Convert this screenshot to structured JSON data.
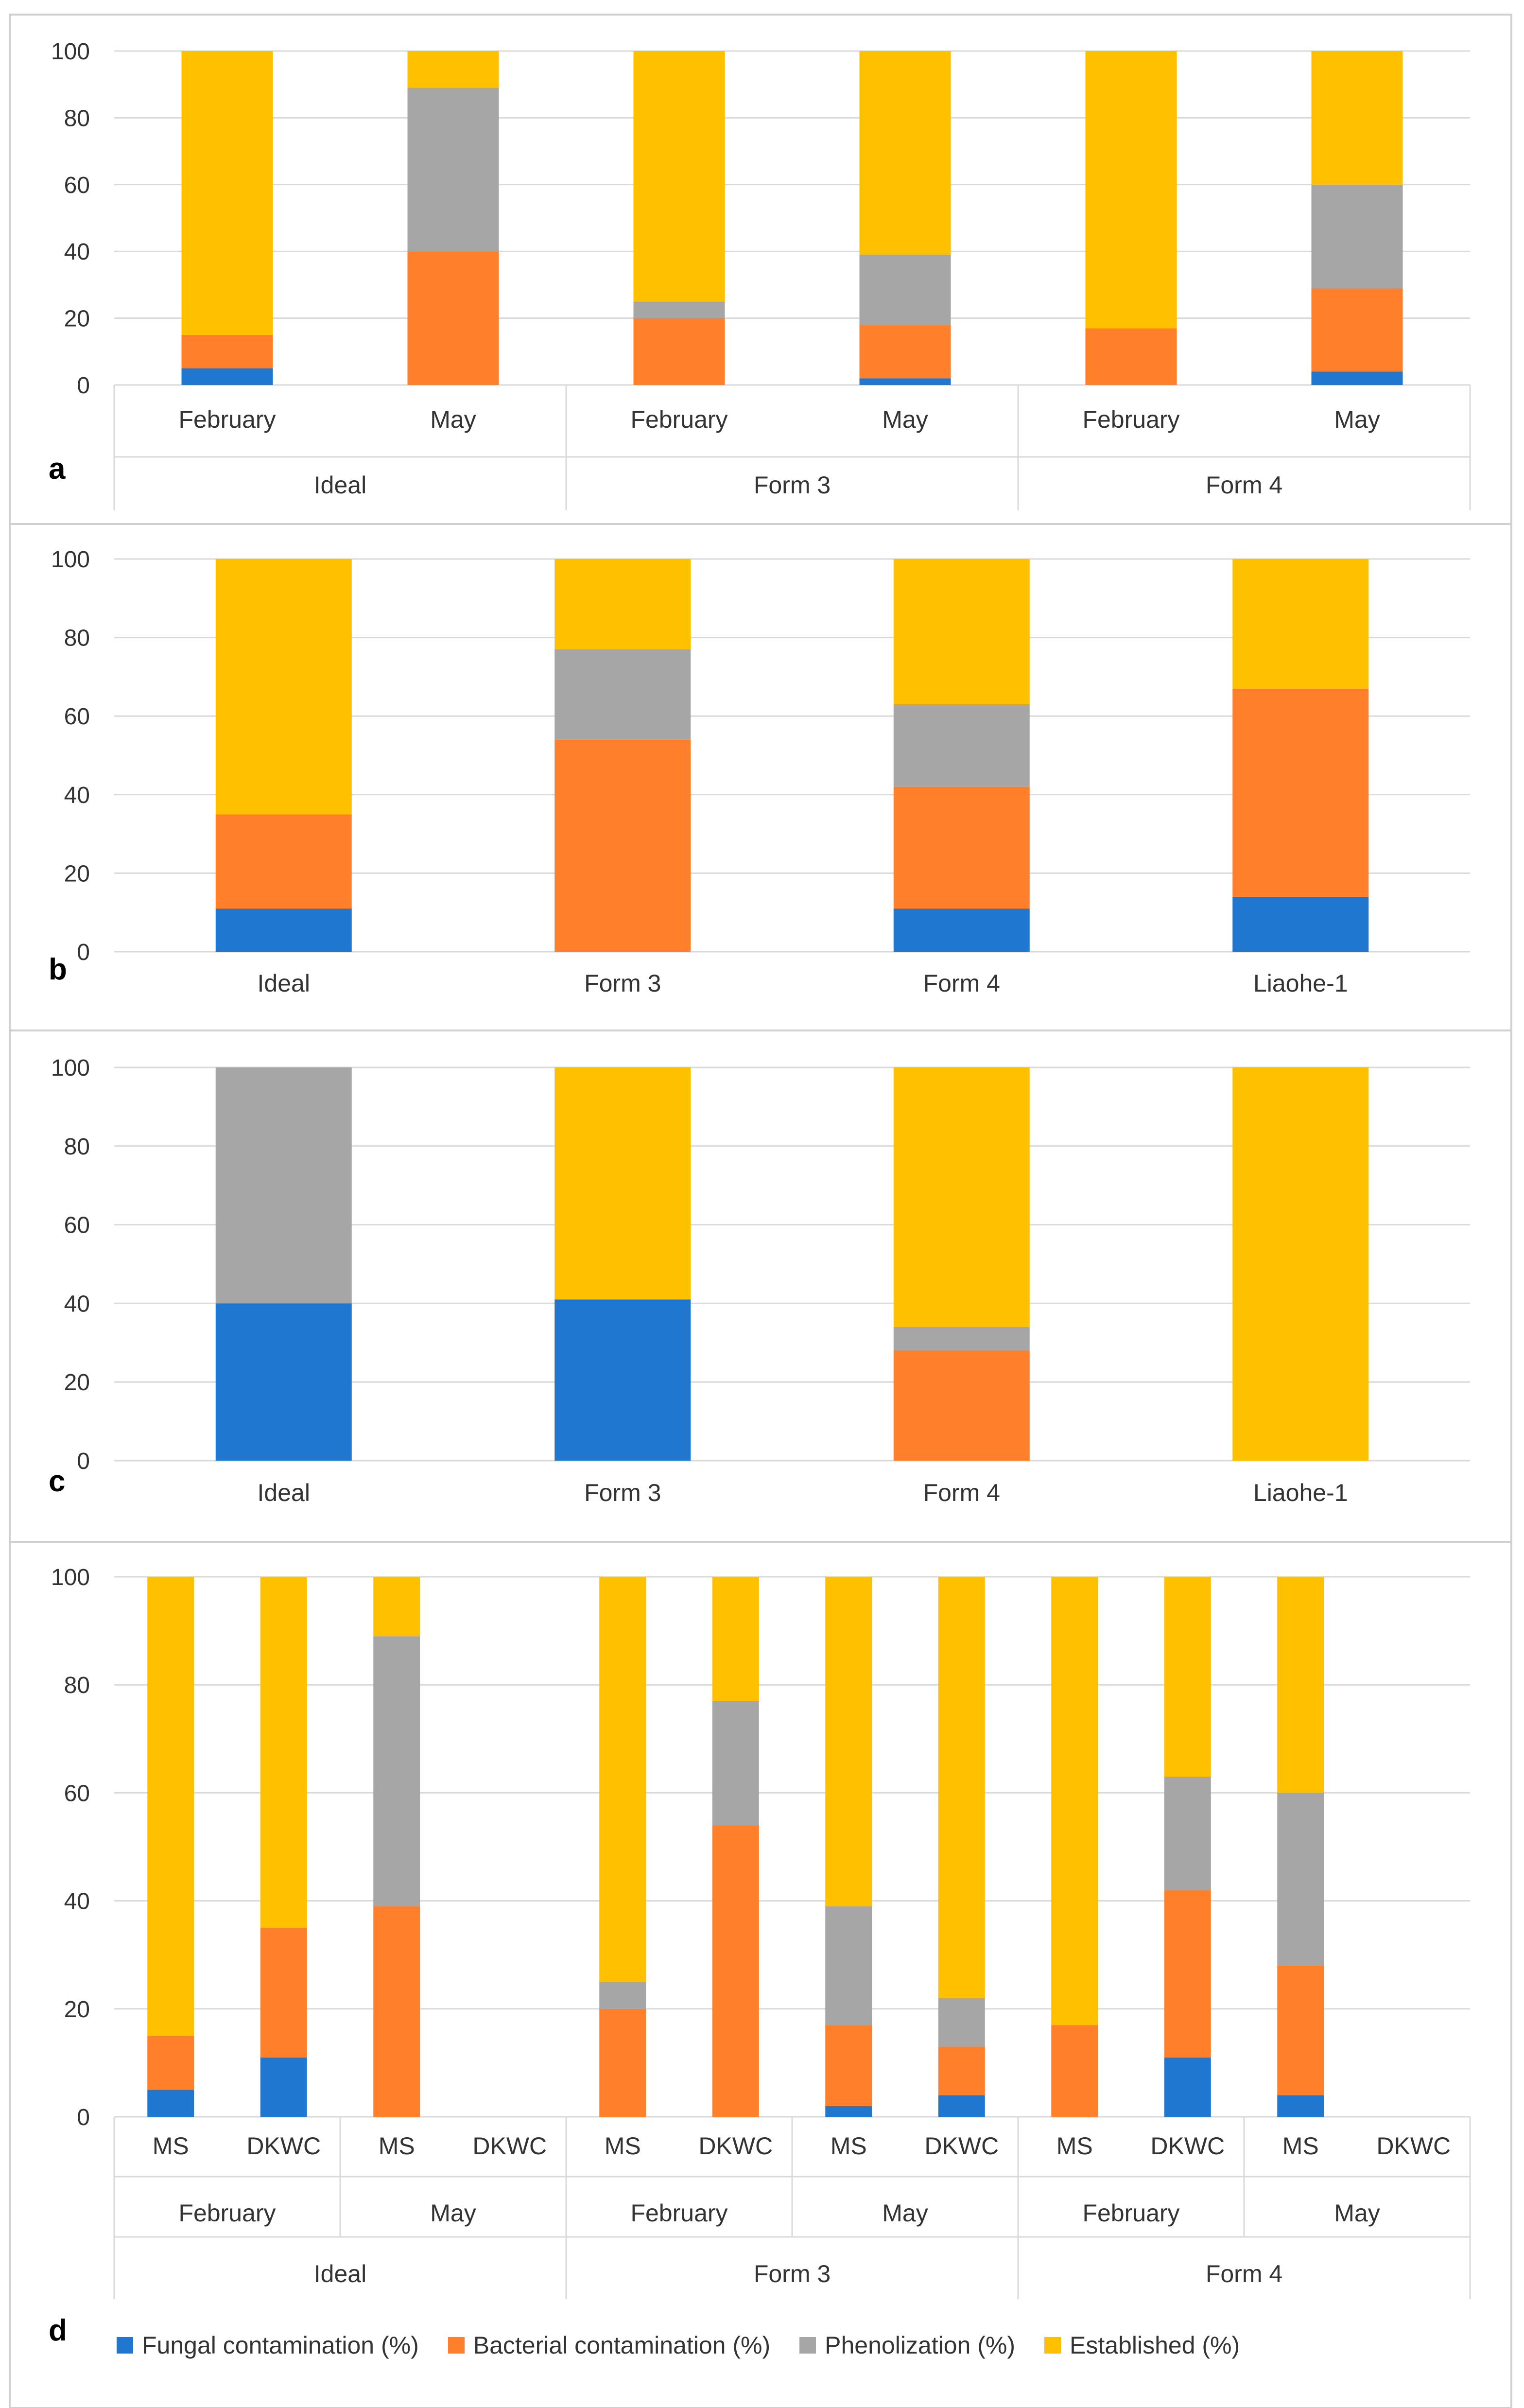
{
  "colors": {
    "fungal": "#1f77d0",
    "bacterial": "#ff7f2a",
    "phenolization": "#a6a6a6",
    "established": "#ffc000",
    "grid": "#d9d9d9",
    "axis_text": "#333333",
    "panel_border": "#d0d0d0"
  },
  "legend": [
    {
      "key": "fungal",
      "label": "Fungal contamination (%)"
    },
    {
      "key": "bacterial",
      "label": "Bacterial contamination (%)"
    },
    {
      "key": "phenolization",
      "label": "Phenolization (%)"
    },
    {
      "key": "established",
      "label": "Established (%)"
    }
  ],
  "chart_data": [
    {
      "panel": "a",
      "type": "bar",
      "stacked": true,
      "ylim": [
        0,
        100
      ],
      "yticks": [
        0,
        20,
        40,
        60,
        80,
        100
      ],
      "categories": [
        "February",
        "May",
        "February",
        "May",
        "February",
        "May"
      ],
      "groups": [
        {
          "label": "Ideal",
          "span": 2
        },
        {
          "label": "Form 3",
          "span": 2
        },
        {
          "label": "Form 4",
          "span": 2
        }
      ],
      "series": [
        {
          "name": "Fungal contamination (%)",
          "key": "fungal",
          "values": [
            5,
            0,
            0,
            2,
            0,
            4
          ]
        },
        {
          "name": "Bacterial contamination (%)",
          "key": "bacterial",
          "values": [
            10,
            40,
            20,
            16,
            17,
            25
          ]
        },
        {
          "name": "Phenolization (%)",
          "key": "phenolization",
          "values": [
            0,
            49,
            5,
            21,
            0,
            31
          ]
        },
        {
          "name": "Established (%)",
          "key": "established",
          "values": [
            85,
            11,
            75,
            61,
            83,
            40
          ]
        }
      ]
    },
    {
      "panel": "b",
      "type": "bar",
      "stacked": true,
      "ylim": [
        0,
        100
      ],
      "yticks": [
        0,
        20,
        40,
        60,
        80,
        100
      ],
      "categories": [
        "Ideal",
        "Form 3",
        "Form 4",
        "Liaohe-1"
      ],
      "series": [
        {
          "name": "Fungal contamination (%)",
          "key": "fungal",
          "values": [
            11,
            0,
            11,
            14
          ]
        },
        {
          "name": "Bacterial contamination (%)",
          "key": "bacterial",
          "values": [
            24,
            54,
            31,
            53
          ]
        },
        {
          "name": "Phenolization (%)",
          "key": "phenolization",
          "values": [
            0,
            23,
            21,
            0
          ]
        },
        {
          "name": "Established (%)",
          "key": "established",
          "values": [
            65,
            23,
            37,
            33
          ]
        }
      ]
    },
    {
      "panel": "c",
      "type": "bar",
      "stacked": true,
      "ylim": [
        0,
        100
      ],
      "yticks": [
        0,
        20,
        40,
        60,
        80,
        100
      ],
      "categories": [
        "Ideal",
        "Form 3",
        "Form 4",
        "Liaohe-1"
      ],
      "series": [
        {
          "name": "Fungal contamination (%)",
          "key": "fungal",
          "values": [
            40,
            41,
            0,
            0
          ]
        },
        {
          "name": "Bacterial contamination (%)",
          "key": "bacterial",
          "values": [
            0,
            0,
            28,
            0
          ]
        },
        {
          "name": "Phenolization (%)",
          "key": "phenolization",
          "values": [
            60,
            0,
            6,
            0
          ]
        },
        {
          "name": "Established (%)",
          "key": "established",
          "values": [
            0,
            59,
            66,
            100
          ]
        }
      ]
    },
    {
      "panel": "d",
      "type": "bar",
      "stacked": true,
      "ylim": [
        0,
        100
      ],
      "yticks": [
        0,
        20,
        40,
        60,
        80,
        100
      ],
      "categories": [
        "MS",
        "DKWC",
        "MS",
        "DKWC",
        "MS",
        "DKWC",
        "MS",
        "DKWC",
        "MS",
        "DKWC",
        "MS",
        "DKWC"
      ],
      "subgroups": [
        {
          "label": "February",
          "span": 2
        },
        {
          "label": "May",
          "span": 2
        },
        {
          "label": "February",
          "span": 2
        },
        {
          "label": "May",
          "span": 2
        },
        {
          "label": "February",
          "span": 2
        },
        {
          "label": "May",
          "span": 2
        }
      ],
      "groups": [
        {
          "label": "Ideal",
          "span": 4
        },
        {
          "label": "Form 3",
          "span": 4
        },
        {
          "label": "Form 4",
          "span": 4
        }
      ],
      "series": [
        {
          "name": "Fungal contamination (%)",
          "key": "fungal",
          "values": [
            5,
            11,
            0,
            0,
            0,
            0,
            2,
            4,
            0,
            11,
            4,
            0
          ]
        },
        {
          "name": "Bacterial contamination (%)",
          "key": "bacterial",
          "values": [
            10,
            24,
            39,
            0,
            20,
            54,
            15,
            9,
            17,
            31,
            24,
            0
          ]
        },
        {
          "name": "Phenolization (%)",
          "key": "phenolization",
          "values": [
            0,
            0,
            50,
            0,
            5,
            23,
            22,
            9,
            0,
            21,
            32,
            0
          ]
        },
        {
          "name": "Established (%)",
          "key": "established",
          "values": [
            85,
            65,
            11,
            0,
            75,
            23,
            61,
            78,
            83,
            37,
            40,
            0
          ]
        }
      ]
    }
  ]
}
